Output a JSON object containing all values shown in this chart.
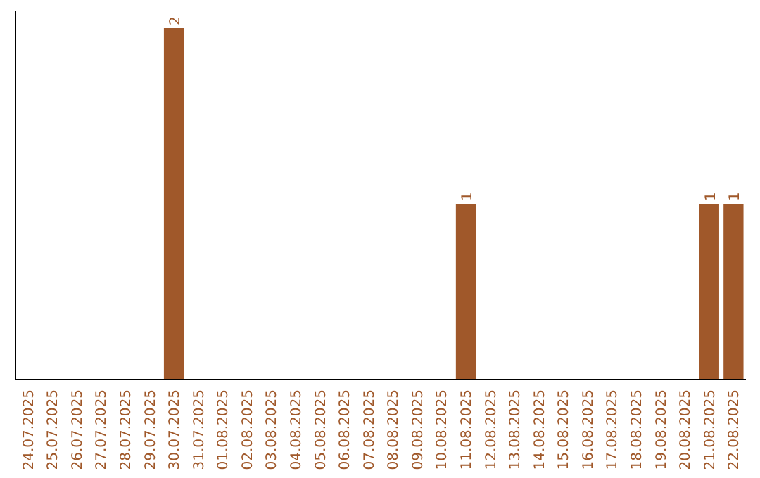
{
  "chart_data": {
    "type": "bar",
    "categories": [
      "24.07.2025",
      "25.07.2025",
      "26.07.2025",
      "27.07.2025",
      "28.07.2025",
      "29.07.2025",
      "30.07.2025",
      "31.07.2025",
      "01.08.2025",
      "02.08.2025",
      "03.08.2025",
      "04.08.2025",
      "05.08.2025",
      "06.08.2025",
      "07.08.2025",
      "08.08.2025",
      "09.08.2025",
      "10.08.2025",
      "11.08.2025",
      "12.08.2025",
      "13.08.2025",
      "14.08.2025",
      "15.08.2025",
      "16.08.2025",
      "17.08.2025",
      "18.08.2025",
      "19.08.2025",
      "20.08.2025",
      "21.08.2025",
      "22.08.2025"
    ],
    "values": [
      0,
      0,
      0,
      0,
      0,
      0,
      2,
      0,
      0,
      0,
      0,
      0,
      0,
      0,
      0,
      0,
      0,
      0,
      1,
      0,
      0,
      0,
      0,
      0,
      0,
      0,
      0,
      0,
      1,
      1
    ],
    "value_labels": [
      null,
      null,
      null,
      null,
      null,
      null,
      "2",
      null,
      null,
      null,
      null,
      null,
      null,
      null,
      null,
      null,
      null,
      null,
      "1",
      null,
      null,
      null,
      null,
      null,
      null,
      null,
      null,
      null,
      "1",
      "1"
    ],
    "color": "#a0582a"
  }
}
